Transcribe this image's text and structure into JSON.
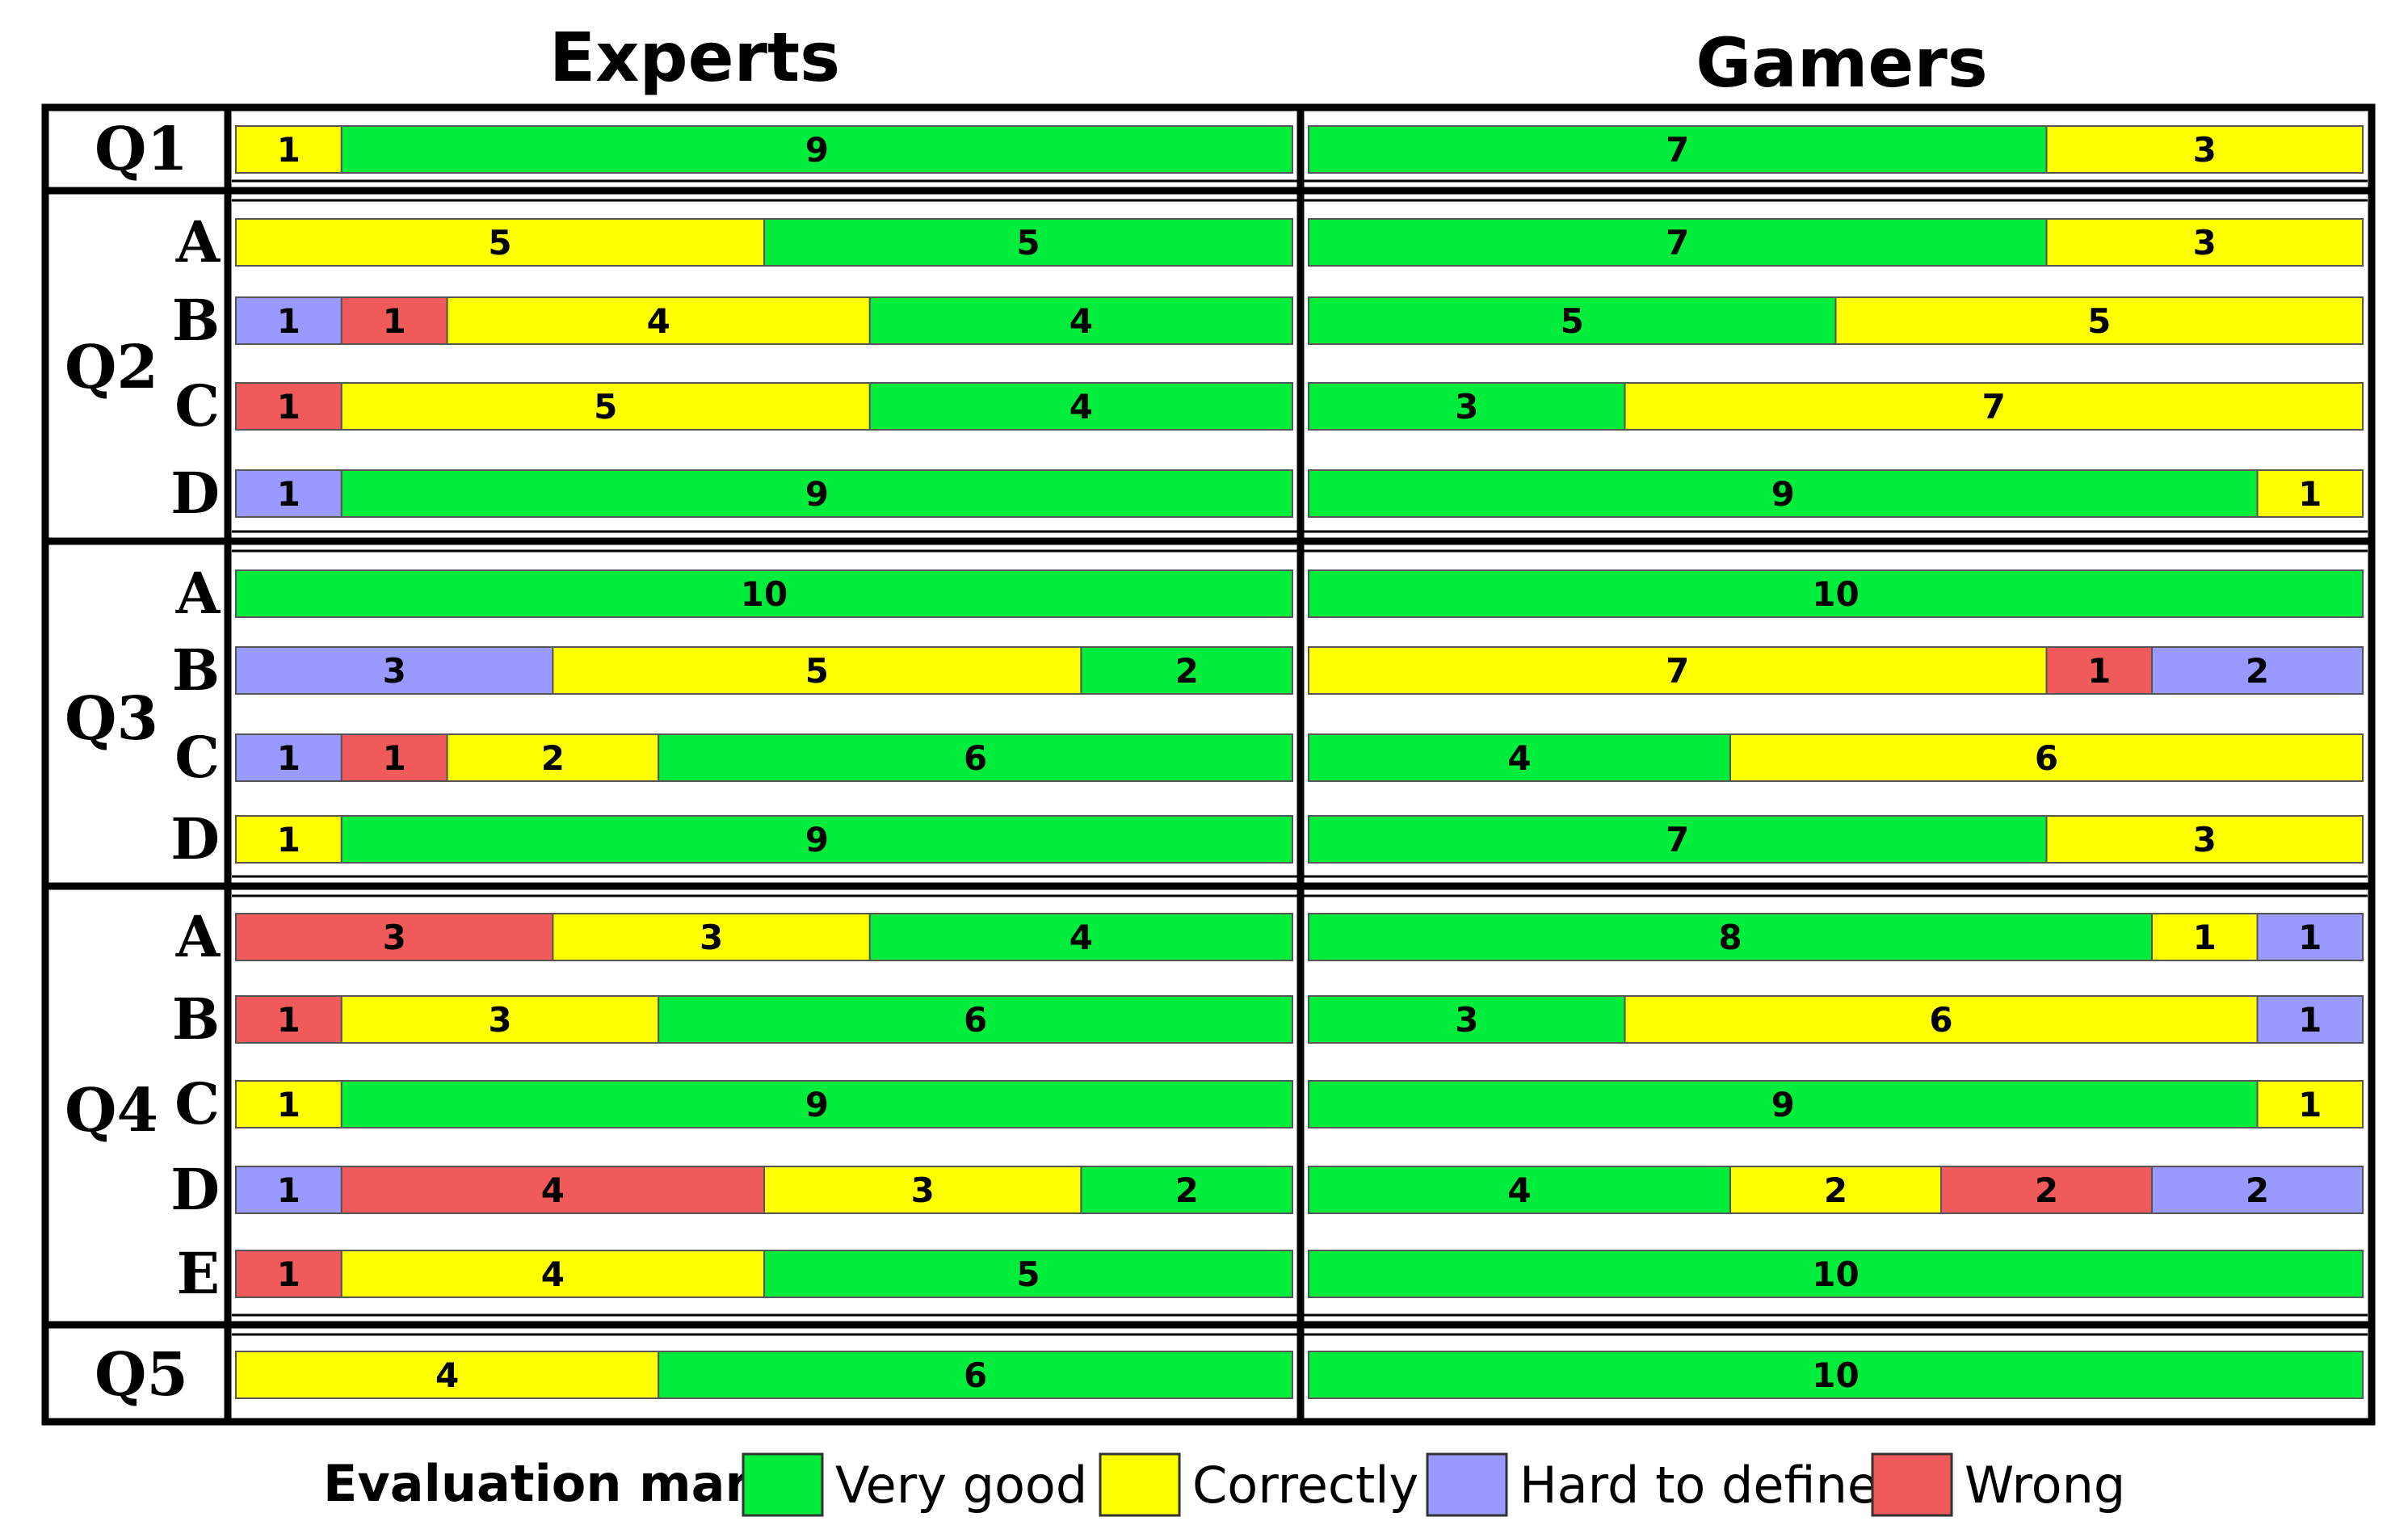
{
  "chart_data": {
    "type": "stacked-bar",
    "columns": [
      "Experts",
      "Gamers"
    ],
    "colors": {
      "very_good": "#00ee3b",
      "correctly": "#ffff00",
      "hard_to_define": "#9999ff",
      "wrong": "#f05a5a"
    },
    "legend": {
      "title": "Evaluation mark:",
      "items": [
        {
          "key": "very_good",
          "label": "Very good"
        },
        {
          "key": "correctly",
          "label": "Correctly"
        },
        {
          "key": "hard_to_define",
          "label": "Hard to define"
        },
        {
          "key": "wrong",
          "label": "Wrong"
        }
      ]
    },
    "groups": [
      {
        "question": "Q1",
        "rows": [
          {
            "sub": "",
            "experts": [
              {
                "c": "correctly",
                "v": 1
              },
              {
                "c": "very_good",
                "v": 9
              }
            ],
            "gamers": [
              {
                "c": "very_good",
                "v": 7
              },
              {
                "c": "correctly",
                "v": 3
              }
            ]
          }
        ]
      },
      {
        "question": "Q2",
        "rows": [
          {
            "sub": "A",
            "experts": [
              {
                "c": "correctly",
                "v": 5
              },
              {
                "c": "very_good",
                "v": 5
              }
            ],
            "gamers": [
              {
                "c": "very_good",
                "v": 7
              },
              {
                "c": "correctly",
                "v": 3
              }
            ]
          },
          {
            "sub": "B",
            "experts": [
              {
                "c": "hard_to_define",
                "v": 1
              },
              {
                "c": "wrong",
                "v": 1
              },
              {
                "c": "correctly",
                "v": 4
              },
              {
                "c": "very_good",
                "v": 4
              }
            ],
            "gamers": [
              {
                "c": "very_good",
                "v": 5
              },
              {
                "c": "correctly",
                "v": 5
              }
            ]
          },
          {
            "sub": "C",
            "experts": [
              {
                "c": "wrong",
                "v": 1
              },
              {
                "c": "correctly",
                "v": 5
              },
              {
                "c": "very_good",
                "v": 4
              }
            ],
            "gamers": [
              {
                "c": "very_good",
                "v": 3
              },
              {
                "c": "correctly",
                "v": 7
              }
            ]
          },
          {
            "sub": "D",
            "experts": [
              {
                "c": "hard_to_define",
                "v": 1
              },
              {
                "c": "very_good",
                "v": 9
              }
            ],
            "gamers": [
              {
                "c": "very_good",
                "v": 9
              },
              {
                "c": "correctly",
                "v": 1
              }
            ]
          }
        ]
      },
      {
        "question": "Q3",
        "rows": [
          {
            "sub": "A",
            "experts": [
              {
                "c": "very_good",
                "v": 10
              }
            ],
            "gamers": [
              {
                "c": "very_good",
                "v": 10
              }
            ]
          },
          {
            "sub": "B",
            "experts": [
              {
                "c": "hard_to_define",
                "v": 3
              },
              {
                "c": "correctly",
                "v": 5
              },
              {
                "c": "very_good",
                "v": 2
              }
            ],
            "gamers": [
              {
                "c": "correctly",
                "v": 7
              },
              {
                "c": "wrong",
                "v": 1
              },
              {
                "c": "hard_to_define",
                "v": 2
              }
            ]
          },
          {
            "sub": "C",
            "experts": [
              {
                "c": "hard_to_define",
                "v": 1
              },
              {
                "c": "wrong",
                "v": 1
              },
              {
                "c": "correctly",
                "v": 2
              },
              {
                "c": "very_good",
                "v": 6
              }
            ],
            "gamers": [
              {
                "c": "very_good",
                "v": 4
              },
              {
                "c": "correctly",
                "v": 6
              }
            ]
          },
          {
            "sub": "D",
            "experts": [
              {
                "c": "correctly",
                "v": 1
              },
              {
                "c": "very_good",
                "v": 9
              }
            ],
            "gamers": [
              {
                "c": "very_good",
                "v": 7
              },
              {
                "c": "correctly",
                "v": 3
              }
            ]
          }
        ]
      },
      {
        "question": "Q4",
        "rows": [
          {
            "sub": "A",
            "experts": [
              {
                "c": "wrong",
                "v": 3
              },
              {
                "c": "correctly",
                "v": 3
              },
              {
                "c": "very_good",
                "v": 4
              }
            ],
            "gamers": [
              {
                "c": "very_good",
                "v": 8
              },
              {
                "c": "correctly",
                "v": 1
              },
              {
                "c": "hard_to_define",
                "v": 1
              }
            ]
          },
          {
            "sub": "B",
            "experts": [
              {
                "c": "wrong",
                "v": 1
              },
              {
                "c": "correctly",
                "v": 3
              },
              {
                "c": "very_good",
                "v": 6
              }
            ],
            "gamers": [
              {
                "c": "very_good",
                "v": 3
              },
              {
                "c": "correctly",
                "v": 6
              },
              {
                "c": "hard_to_define",
                "v": 1
              }
            ]
          },
          {
            "sub": "C",
            "experts": [
              {
                "c": "correctly",
                "v": 1
              },
              {
                "c": "very_good",
                "v": 9
              }
            ],
            "gamers": [
              {
                "c": "very_good",
                "v": 9
              },
              {
                "c": "correctly",
                "v": 1
              }
            ]
          },
          {
            "sub": "D",
            "experts": [
              {
                "c": "hard_to_define",
                "v": 1
              },
              {
                "c": "wrong",
                "v": 4
              },
              {
                "c": "correctly",
                "v": 3
              },
              {
                "c": "very_good",
                "v": 2
              }
            ],
            "gamers": [
              {
                "c": "very_good",
                "v": 4
              },
              {
                "c": "correctly",
                "v": 2
              },
              {
                "c": "wrong",
                "v": 2
              },
              {
                "c": "hard_to_define",
                "v": 2
              }
            ]
          },
          {
            "sub": "E",
            "experts": [
              {
                "c": "wrong",
                "v": 1
              },
              {
                "c": "correctly",
                "v": 4
              },
              {
                "c": "very_good",
                "v": 5
              }
            ],
            "gamers": [
              {
                "c": "very_good",
                "v": 10
              }
            ]
          }
        ]
      },
      {
        "question": "Q5",
        "rows": [
          {
            "sub": "",
            "experts": [
              {
                "c": "correctly",
                "v": 4
              },
              {
                "c": "very_good",
                "v": 6
              }
            ],
            "gamers": [
              {
                "c": "very_good",
                "v": 10
              }
            ]
          }
        ]
      }
    ]
  }
}
